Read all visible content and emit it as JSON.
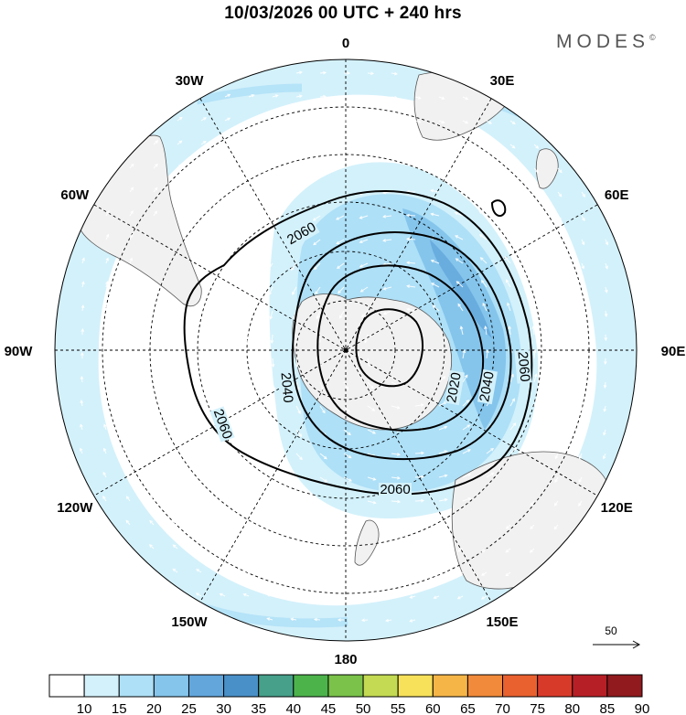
{
  "header": {
    "title": "10/03/2026  00 UTC  + 240 hrs",
    "brand": "MODES",
    "brand_mark": "©"
  },
  "map": {
    "projection": "polar-stereographic-south",
    "longitude_labels": [
      {
        "text": "0",
        "lon": 0
      },
      {
        "text": "30E",
        "lon": 30
      },
      {
        "text": "60E",
        "lon": 60
      },
      {
        "text": "90E",
        "lon": 90
      },
      {
        "text": "120E",
        "lon": 120
      },
      {
        "text": "150E",
        "lon": 150
      },
      {
        "text": "180",
        "lon": 180
      },
      {
        "text": "150W",
        "lon": -150
      },
      {
        "text": "120W",
        "lon": -120
      },
      {
        "text": "90W",
        "lon": -90
      },
      {
        "text": "60W",
        "lon": -60
      },
      {
        "text": "30W",
        "lon": -30
      }
    ],
    "contour_labels": [
      "2060",
      "2060",
      "2060",
      "2060",
      "2040",
      "2040",
      "2020"
    ],
    "contour_values": [
      2020,
      2040,
      2060
    ],
    "wind_reference": {
      "label": "50"
    }
  },
  "colorbar": {
    "labels": [
      "10",
      "15",
      "20",
      "25",
      "30",
      "35",
      "40",
      "45",
      "50",
      "55",
      "60",
      "65",
      "70",
      "75",
      "80",
      "85",
      "90"
    ],
    "colors": [
      "#ffffff",
      "#d3f1fb",
      "#aee0f7",
      "#85c5ec",
      "#62a6dc",
      "#4a90c8",
      "#46a08a",
      "#4cb34b",
      "#7ac24a",
      "#c3da52",
      "#f7e15a",
      "#f5b547",
      "#f18a3a",
      "#e9612f",
      "#d83a2a",
      "#b71f26",
      "#901a1e"
    ]
  },
  "colors": {
    "land": "#f1f1f1",
    "coast": "#555555",
    "contour": "#000000",
    "arrow": "#ffffff"
  }
}
